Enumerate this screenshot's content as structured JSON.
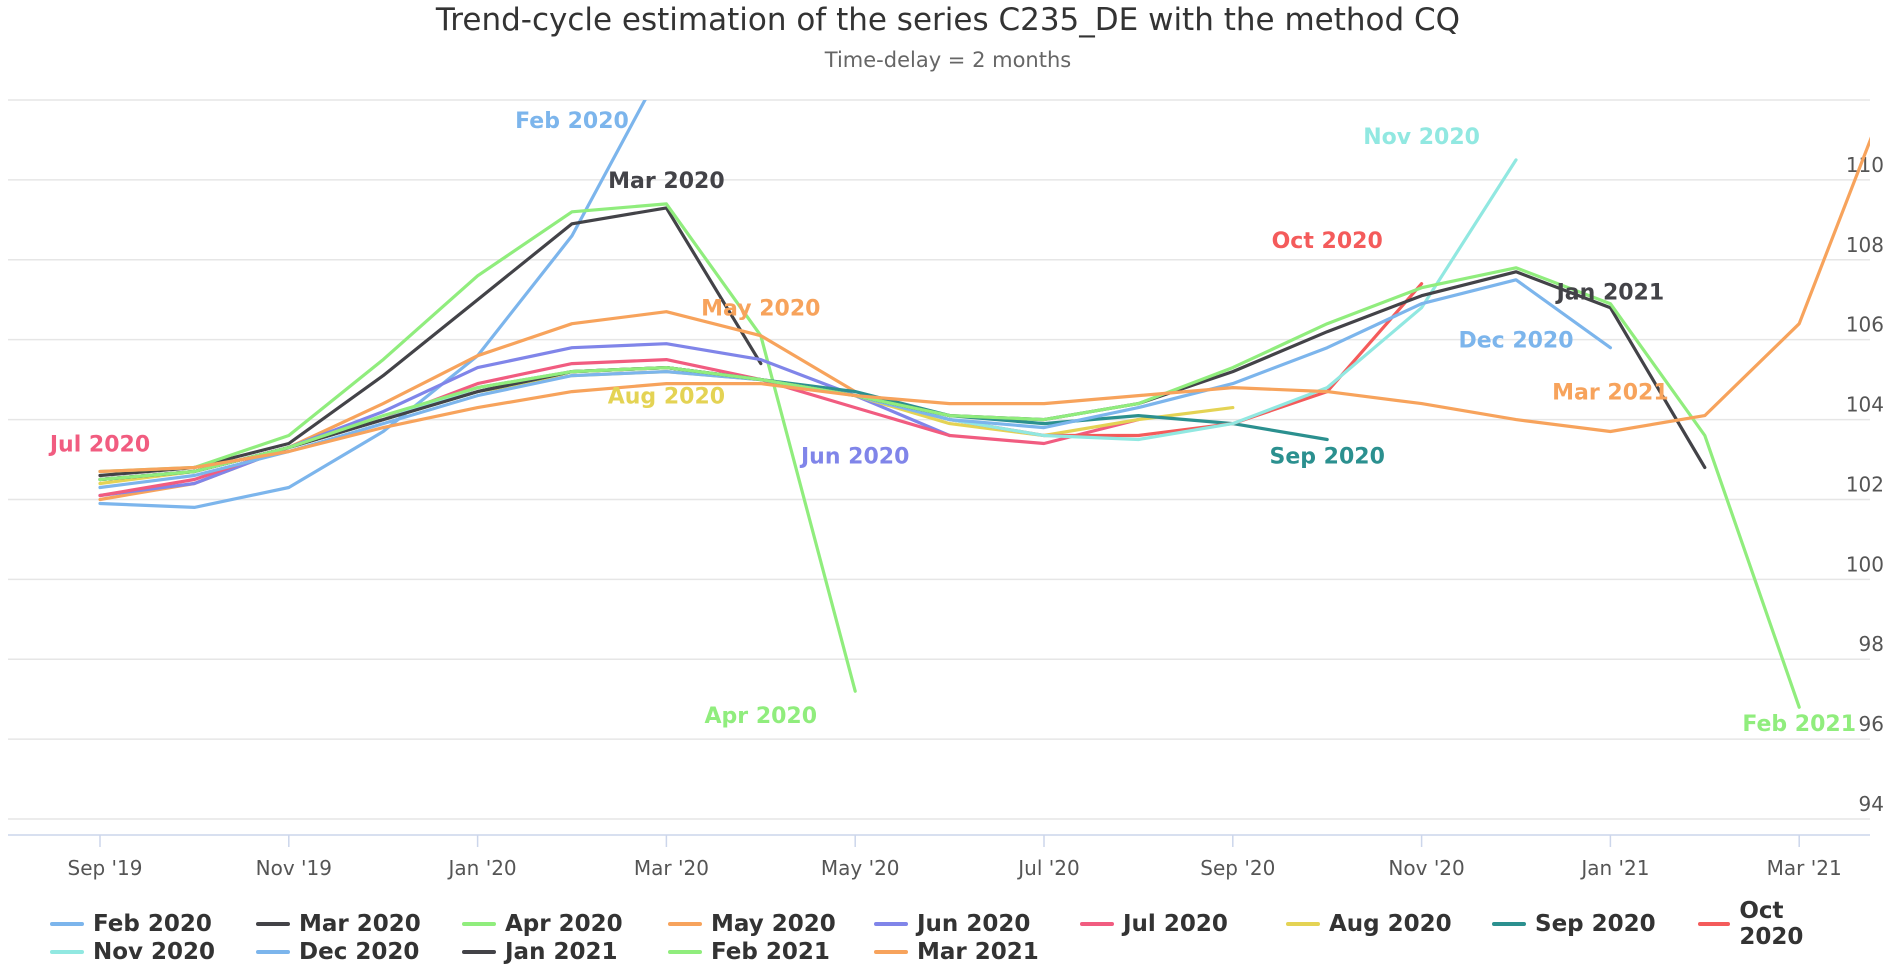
{
  "title": "Trend-cycle estimation of the series C235_DE with the method CQ",
  "subtitle": "Time-delay = 2 months",
  "chart_data": {
    "type": "line",
    "title": "Trend-cycle estimation of the series C235_DE with the method CQ",
    "subtitle": "Time-delay = 2 months",
    "xlabel": "",
    "ylabel": "",
    "x_tick_labels": [
      "Sep '19",
      "Nov '19",
      "Jan '20",
      "Mar '20",
      "May '20",
      "Jul '20",
      "Sep '20",
      "Nov '20",
      "Jan '21",
      "Mar '21"
    ],
    "y_tick_labels": [
      "94",
      "96",
      "98",
      "100",
      "102",
      "104",
      "106",
      "108",
      "110"
    ],
    "ylim": [
      93.6,
      112
    ],
    "x_months_range": [
      "2019-08",
      "2021-03"
    ],
    "grid": true,
    "legend_position": "bottom",
    "series": [
      {
        "name": "Feb 2020",
        "color": "#7cb5ec",
        "start": "2019-08",
        "values": [
          101.9,
          101.8,
          102.3,
          103.7,
          105.6,
          108.6,
          113
        ]
      },
      {
        "name": "Mar 2020",
        "color": "#434348",
        "start": "2019-08",
        "values": [
          102.6,
          102.8,
          103.4,
          105.1,
          107.0,
          108.9,
          109.3,
          105.4
        ]
      },
      {
        "name": "Apr 2020",
        "color": "#90ed7d",
        "start": "2019-08",
        "values": [
          102.7,
          102.8,
          103.6,
          105.5,
          107.6,
          109.2,
          109.4,
          106.1,
          97.2
        ]
      },
      {
        "name": "May 2020",
        "color": "#f7a35c",
        "start": "2019-08",
        "values": [
          102.0,
          102.4,
          103.3,
          104.4,
          105.6,
          106.4,
          106.7,
          106.1,
          104.7
        ]
      },
      {
        "name": "Jun 2020",
        "color": "#8085e9",
        "start": "2019-08",
        "values": [
          102.1,
          102.4,
          103.3,
          104.2,
          105.3,
          105.8,
          105.9,
          105.5,
          104.6,
          103.6
        ]
      },
      {
        "name": "Jul 2020",
        "color": "#f15c80",
        "start": "2019-08",
        "values": [
          102.1,
          102.5,
          103.3,
          104.0,
          104.9,
          105.4,
          105.5,
          105.0,
          104.3,
          103.6,
          103.4,
          104.0
        ]
      },
      {
        "name": "Aug 2020",
        "color": "#e4d354",
        "start": "2019-08",
        "values": [
          102.4,
          102.7,
          103.3,
          104.0,
          104.7,
          105.1,
          105.2,
          105.0,
          104.6,
          103.9,
          103.6,
          104.0,
          104.3
        ]
      },
      {
        "name": "Sep 2020",
        "color": "#2b908f",
        "start": "2019-08",
        "values": [
          102.5,
          102.7,
          103.3,
          104.0,
          104.7,
          105.2,
          105.3,
          105.0,
          104.7,
          104.1,
          103.9,
          104.1,
          103.9,
          103.5
        ]
      },
      {
        "name": "Oct 2020",
        "color": "#f45b5b",
        "start": "2019-08",
        "values": [
          102.5,
          102.7,
          103.3,
          104.0,
          104.8,
          105.2,
          105.3,
          105.0,
          104.6,
          104.0,
          103.6,
          103.6,
          103.9,
          104.7,
          107.4
        ]
      },
      {
        "name": "Nov 2020",
        "color": "#91e8e1",
        "start": "2019-08",
        "values": [
          102.5,
          102.7,
          103.3,
          104.0,
          104.8,
          105.2,
          105.3,
          105.0,
          104.6,
          104.0,
          103.6,
          103.5,
          103.9,
          104.8,
          106.8,
          110.5
        ]
      },
      {
        "name": "Dec 2020",
        "color": "#7cb5ec",
        "start": "2019-08",
        "values": [
          102.3,
          102.6,
          103.2,
          103.9,
          104.6,
          105.1,
          105.2,
          105.0,
          104.6,
          104.0,
          103.8,
          104.3,
          104.9,
          105.8,
          106.9,
          107.5,
          105.8
        ]
      },
      {
        "name": "Jan 2021",
        "color": "#434348",
        "start": "2019-08",
        "values": [
          102.5,
          102.7,
          103.3,
          104.0,
          104.7,
          105.2,
          105.3,
          105.0,
          104.6,
          104.1,
          104.0,
          104.4,
          105.2,
          106.2,
          107.1,
          107.7,
          106.8,
          102.8
        ]
      },
      {
        "name": "Feb 2021",
        "color": "#90ed7d",
        "start": "2019-08",
        "values": [
          102.5,
          102.7,
          103.3,
          104.1,
          104.8,
          105.2,
          105.3,
          105.0,
          104.6,
          104.1,
          104.0,
          104.4,
          105.3,
          106.4,
          107.3,
          107.8,
          106.9,
          103.6,
          96.8
        ]
      },
      {
        "name": "Mar 2021",
        "color": "#f7a35c",
        "start": "2019-08",
        "values": [
          102.7,
          102.8,
          103.2,
          103.8,
          104.3,
          104.7,
          104.9,
          104.9,
          104.6,
          104.4,
          104.4,
          104.6,
          104.8,
          104.7,
          104.4,
          104.0,
          103.7,
          104.1,
          106.4,
          112.5
        ]
      }
    ],
    "line_labels": [
      {
        "text": "Feb 2020",
        "color": "#7cb5ec",
        "month": "2020-01",
        "y": 111.3
      },
      {
        "text": "Mar 2020",
        "color": "#434348",
        "month": "2020-02",
        "y": 109.8
      },
      {
        "text": "Apr 2020",
        "color": "#90ed7d",
        "month": "2020-03",
        "y": 96.4
      },
      {
        "text": "May 2020",
        "color": "#f7a35c",
        "month": "2020-03",
        "y": 106.6
      },
      {
        "text": "Jun 2020",
        "color": "#8085e9",
        "month": "2020-04",
        "y": 102.9
      },
      {
        "text": "Jul 2020",
        "color": "#f15c80",
        "month": "2019-08",
        "y": 103.2
      },
      {
        "text": "Aug 2020",
        "color": "#e4d354",
        "month": "2020-02",
        "y": 104.4
      },
      {
        "text": "Sep 2020",
        "color": "#2b908f",
        "month": "2020-09",
        "y": 102.9
      },
      {
        "text": "Oct 2020",
        "color": "#f45b5b",
        "month": "2020-09",
        "y": 108.3
      },
      {
        "text": "Nov 2020",
        "color": "#91e8e1",
        "month": "2020-10",
        "y": 110.9
      },
      {
        "text": "Dec 2020",
        "color": "#7cb5ec",
        "month": "2020-11",
        "y": 105.8
      },
      {
        "text": "Jan 2021",
        "color": "#434348",
        "month": "2020-12",
        "y": 107.0
      },
      {
        "text": "Feb 2021",
        "color": "#90ed7d",
        "month": "2021-02",
        "y": 96.2
      },
      {
        "text": "Mar 2021",
        "color": "#f7a35c",
        "month": "2020-12",
        "y": 104.5
      }
    ]
  }
}
